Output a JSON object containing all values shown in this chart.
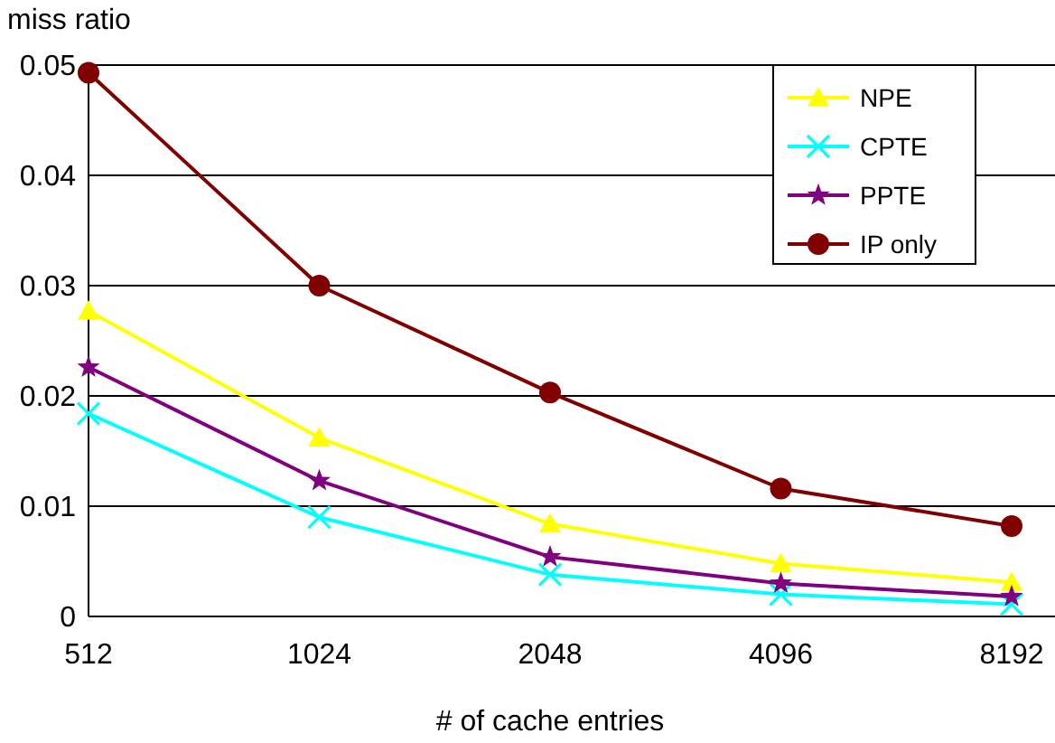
{
  "chart_data": {
    "type": "line",
    "xlabel": "# of cache entries",
    "ylabel": "miss ratio",
    "categories": [
      "512",
      "1024",
      "2048",
      "4096",
      "8192"
    ],
    "ylim": [
      0,
      0.05
    ],
    "yticks": [
      {
        "value": 0,
        "label": "0"
      },
      {
        "value": 0.01,
        "label": "0.01"
      },
      {
        "value": 0.02,
        "label": "0.02"
      },
      {
        "value": 0.03,
        "label": "0.03"
      },
      {
        "value": 0.04,
        "label": "0.04"
      },
      {
        "value": 0.05,
        "label": "0.05"
      }
    ],
    "grid": "y",
    "legend": "top right",
    "series": [
      {
        "name": "NPE",
        "color": "#ffff00",
        "marker": "triangle",
        "values": [
          0.0277,
          0.0162,
          0.0084,
          0.0048,
          0.0031
        ]
      },
      {
        "name": "CPTE",
        "color": "#00ffff",
        "marker": "cross",
        "values": [
          0.0184,
          0.009,
          0.0038,
          0.002,
          0.0011
        ]
      },
      {
        "name": "PPTE",
        "color": "#800080",
        "marker": "star",
        "values": [
          0.0226,
          0.0123,
          0.0054,
          0.003,
          0.0018
        ]
      },
      {
        "name": "IP only",
        "color": "#800000",
        "marker": "circle",
        "values": [
          0.0493,
          0.03,
          0.0203,
          0.0116,
          0.0082
        ]
      }
    ]
  }
}
